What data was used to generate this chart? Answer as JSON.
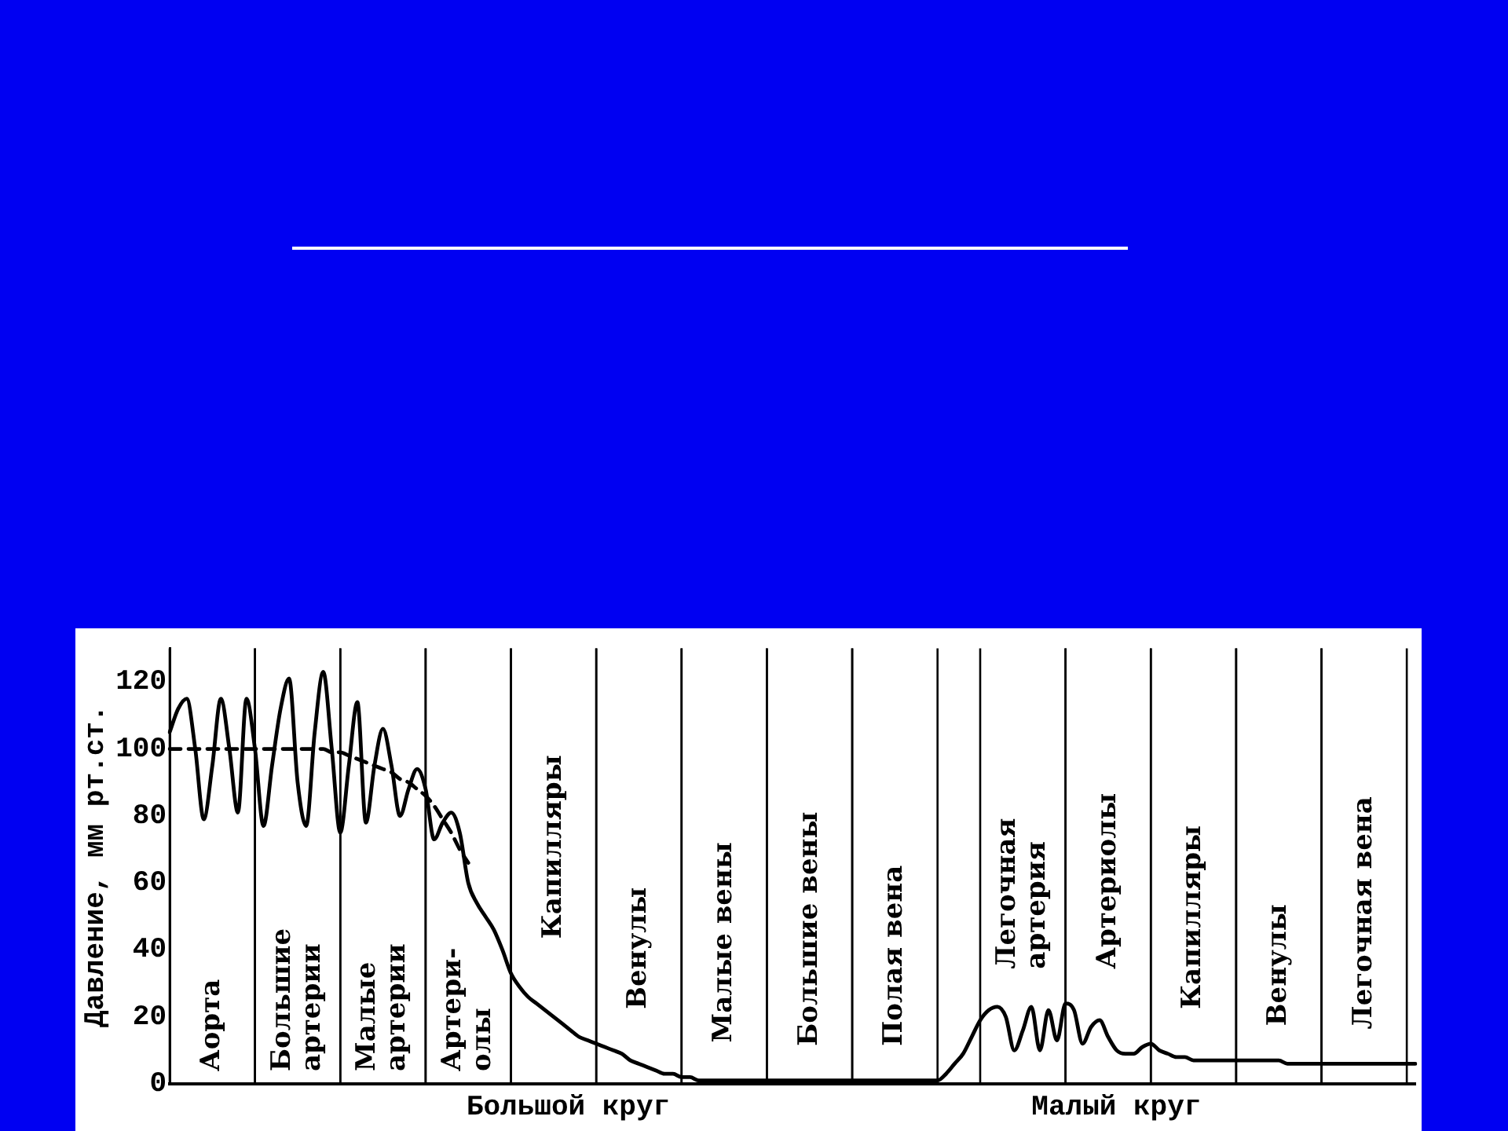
{
  "chart_data": {
    "type": "line",
    "ylabel": "Давление, мм рт.ст.",
    "categories": [
      null,
      null,
      null,
      null,
      null,
      null,
      null,
      null,
      null,
      null,
      null,
      null,
      null,
      null,
      null,
      null,
      null,
      null,
      null,
      null,
      null,
      null,
      null,
      null,
      null,
      null,
      null,
      null,
      null,
      null,
      null,
      null,
      null,
      null,
      null,
      null,
      null,
      null,
      null,
      null,
      null,
      null,
      null,
      null,
      null,
      null,
      null,
      null,
      null,
      null,
      null,
      null,
      null,
      null,
      null,
      null,
      null,
      null,
      null,
      null,
      null,
      null,
      null,
      null,
      null,
      null,
      null,
      null,
      null,
      null,
      null,
      null,
      null,
      null,
      null,
      null,
      null,
      null,
      null,
      null,
      null,
      null,
      null,
      null,
      null,
      null,
      null,
      null,
      null,
      null,
      null,
      null,
      null,
      null,
      null,
      null,
      null,
      null,
      null,
      null,
      null,
      null,
      null,
      null,
      null,
      null,
      null,
      null,
      null,
      null,
      null,
      null,
      null,
      null,
      null,
      null,
      null,
      null,
      null,
      null,
      null,
      null,
      null,
      null,
      null,
      null,
      null,
      null,
      null,
      null,
      null,
      null,
      null,
      null,
      null,
      null,
      null,
      null,
      null,
      null,
      null,
      null,
      null,
      null,
      null,
      null,
      null
    ],
    "ylim": [
      0,
      130
    ],
    "yticks": [
      0,
      20,
      40,
      60,
      80,
      100,
      120
    ],
    "tick_labels": "y",
    "grid": false,
    "series": [
      {
        "color": "#000000",
        "line_style": "solid",
        "values": [
          105,
          112,
          115,
          100,
          79,
          95,
          115,
          100,
          81,
          115,
          100,
          77,
          95,
          112,
          121,
          90,
          77,
          105,
          123,
          100,
          75,
          95,
          114,
          78,
          95,
          106,
          95,
          80,
          88,
          94,
          88,
          73,
          78,
          81,
          75,
          60,
          54,
          50,
          46,
          40,
          33,
          29,
          26,
          24,
          22,
          20,
          18,
          16,
          14,
          13,
          12,
          11,
          10,
          9,
          7,
          6,
          5,
          4,
          3,
          3,
          2,
          2,
          1,
          1,
          1,
          1,
          1,
          1,
          1,
          1,
          1,
          1,
          1,
          1,
          1,
          1,
          1,
          1,
          1,
          1,
          1,
          1,
          1,
          1,
          1,
          1,
          1,
          1,
          1,
          1,
          1,
          3,
          6,
          9,
          14,
          19,
          22,
          23,
          20,
          10,
          16,
          23,
          10,
          22,
          13,
          24,
          22,
          12,
          17,
          19,
          14,
          10,
          9,
          9,
          11,
          12,
          10,
          9,
          8,
          8,
          7,
          7,
          7,
          7,
          7,
          7,
          7,
          7,
          7,
          7,
          7,
          6,
          6,
          6,
          6,
          6,
          6,
          6,
          6,
          6,
          6,
          6,
          6,
          6,
          6,
          6,
          6
        ]
      },
      {
        "color": "#000000",
        "line_style": "dashed",
        "values": [
          100,
          100,
          100,
          100,
          100,
          100,
          100,
          100,
          100,
          100,
          100,
          100,
          100,
          100,
          100,
          100,
          100,
          100,
          100,
          99,
          99,
          98,
          97,
          96,
          95,
          94,
          93,
          91,
          90,
          88,
          86,
          83,
          79,
          75,
          70,
          66,
          null,
          null,
          null,
          null,
          null,
          null,
          null,
          null,
          null,
          null,
          null,
          null,
          null,
          null,
          null,
          null,
          null,
          null,
          null,
          null,
          null,
          null,
          null,
          null,
          null,
          null,
          null,
          null,
          null,
          null,
          null,
          null,
          null,
          null,
          null,
          null,
          null,
          null,
          null,
          null,
          null,
          null,
          null,
          null,
          null,
          null,
          null,
          null,
          null,
          null,
          null,
          null,
          null,
          null,
          null,
          null,
          null,
          null,
          null,
          null,
          null,
          null,
          null,
          null,
          null,
          null,
          null,
          null,
          null,
          null,
          null,
          null,
          null,
          null,
          null,
          null,
          null,
          null,
          null,
          null,
          null,
          null,
          null,
          null,
          null,
          null,
          null,
          null,
          null,
          null,
          null,
          null,
          null,
          null,
          null,
          null,
          null,
          null,
          null,
          null,
          null,
          null,
          null,
          null,
          null,
          null,
          null,
          null,
          null,
          null,
          null
        ]
      }
    ],
    "annotations": [
      "Аорта",
      "Большие\nартерии",
      "Малые\nартерии",
      "Артери-\nолы",
      "Капилляры",
      "Венулы",
      "Малые вены",
      "Большие вены",
      "Полая вена",
      "Легочная\nартерия",
      "Артериолы",
      "Капилляры",
      "Венулы",
      "Легочная вена",
      "Большой круг",
      "Малый круг"
    ]
  }
}
